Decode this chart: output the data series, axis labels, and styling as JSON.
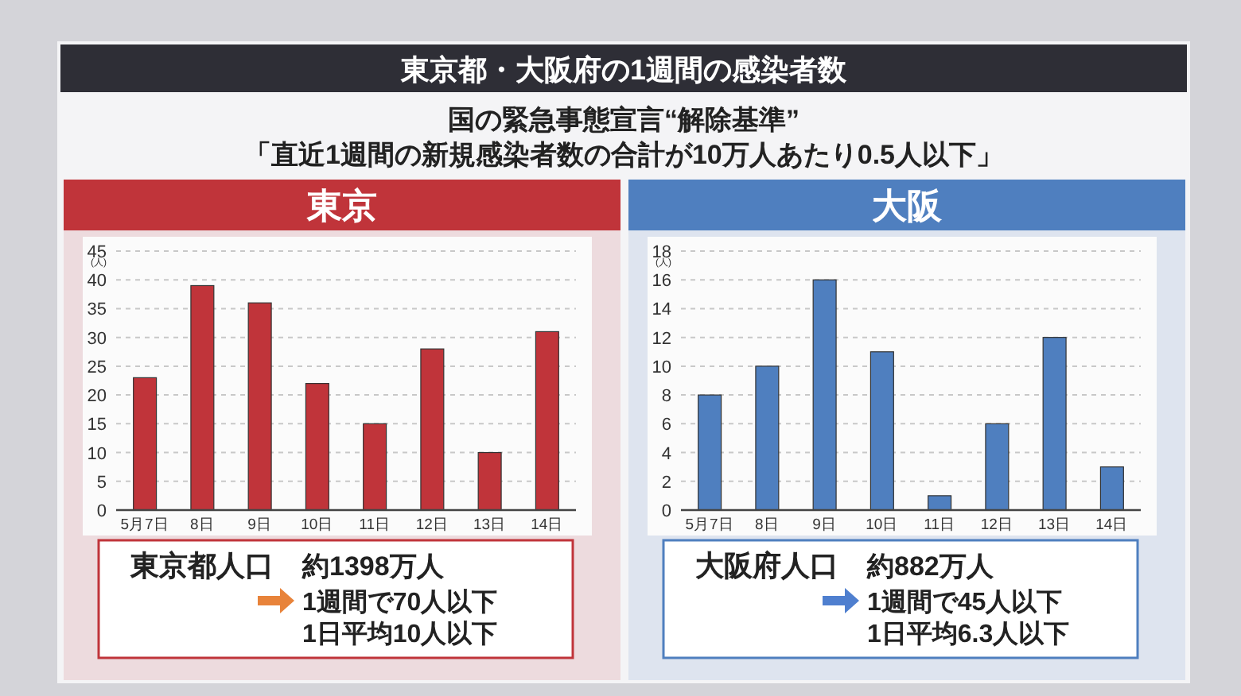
{
  "chart_data": [
    {
      "type": "other",
      "title": "東京都・大阪府の1週間の感染者数",
      "annotations": [
        "国の緊急事態宣言“解除基準”",
        "「直近1週間の新規感染者数の合計が10万人あたり0.5人以下」"
      ]
    },
    {
      "type": "bar",
      "title": "東京",
      "ylabel": "(人)",
      "categories": [
        "5月7日",
        "8日",
        "9日",
        "10日",
        "11日",
        "12日",
        "13日",
        "14日"
      ],
      "values": [
        23,
        39,
        36,
        22,
        15,
        28,
        10,
        31
      ],
      "color": "#c0343a",
      "ylim": [
        0,
        45
      ],
      "yticks": [
        0,
        5,
        10,
        15,
        20,
        25,
        30,
        35,
        40,
        45
      ],
      "grid": "y",
      "annotations": [
        "東京都人口",
        "約1398万人",
        "1週間で70人以下",
        "1日平均10人以下"
      ]
    },
    {
      "type": "bar",
      "title": "大阪",
      "ylabel": "(人)",
      "categories": [
        "5月7日",
        "8日",
        "9日",
        "10日",
        "11日",
        "12日",
        "13日",
        "14日"
      ],
      "values": [
        8,
        10,
        16,
        11,
        1,
        6,
        12,
        3
      ],
      "color": "#4f7fbf",
      "ylim": [
        0,
        18
      ],
      "yticks": [
        0,
        2,
        4,
        6,
        8,
        10,
        12,
        14,
        16,
        18
      ],
      "grid": "y",
      "annotations": [
        "大阪府人口",
        "約882万人",
        "1週間で45人以下",
        "1日平均6.3人以下"
      ]
    }
  ]
}
